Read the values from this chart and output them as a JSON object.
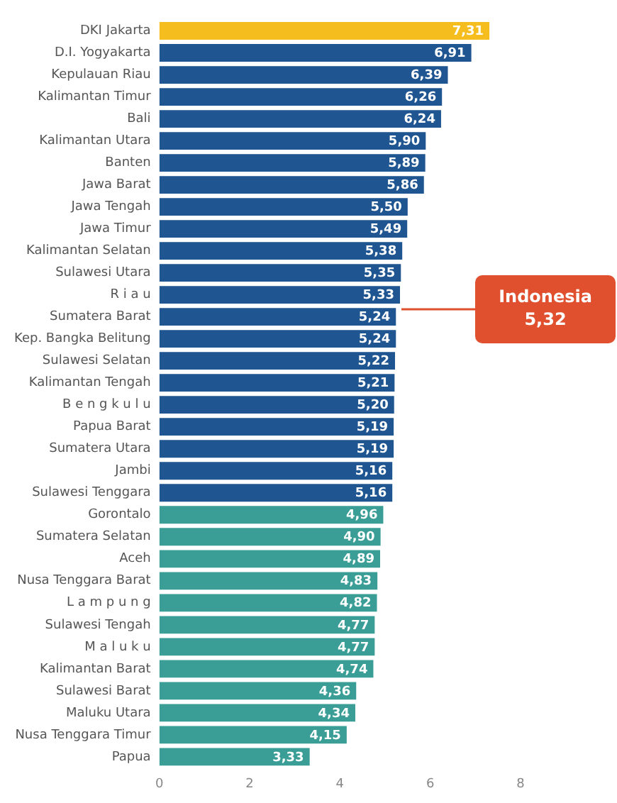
{
  "chart_data": {
    "type": "bar",
    "orientation": "horizontal",
    "categories": [
      "DKI Jakarta",
      "D.I. Yogyakarta",
      "Kepulauan Riau",
      "Kalimantan Timur",
      "Bali",
      "Kalimantan Utara",
      "Banten",
      "Jawa Barat",
      "Jawa Tengah",
      "Jawa Timur",
      "Kalimantan Selatan",
      "Sulawesi Utara",
      "R i a u",
      "Sumatera Barat",
      "Kep. Bangka Belitung",
      "Sulawesi Selatan",
      "Kalimantan Tengah",
      "B e n g k u l u",
      "Papua Barat",
      "Sumatera Utara",
      "Jambi",
      "Sulawesi Tenggara",
      "Gorontalo",
      "Sumatera Selatan",
      "Aceh",
      "Nusa Tenggara Barat",
      "L a m p u n g",
      "Sulawesi Tengah",
      "M a l u k u",
      "Kalimantan Barat",
      "Sulawesi Barat",
      "Maluku Utara",
      "Nusa Tenggara Timur",
      "Papua"
    ],
    "values": [
      7.31,
      6.91,
      6.39,
      6.26,
      6.24,
      5.9,
      5.89,
      5.86,
      5.5,
      5.49,
      5.38,
      5.35,
      5.33,
      5.24,
      5.24,
      5.22,
      5.21,
      5.2,
      5.19,
      5.19,
      5.16,
      5.16,
      4.96,
      4.9,
      4.89,
      4.83,
      4.82,
      4.77,
      4.77,
      4.74,
      4.36,
      4.34,
      4.15,
      3.33
    ],
    "value_labels": [
      "7,31",
      "6,91",
      "6,39",
      "6,26",
      "6,24",
      "5,90",
      "5,89",
      "5,86",
      "5,50",
      "5,49",
      "5,38",
      "5,35",
      "5,33",
      "5,24",
      "5,24",
      "5,22",
      "5,21",
      "5,20",
      "5,19",
      "5,19",
      "5,16",
      "5,16",
      "4,96",
      "4,90",
      "4,89",
      "4,83",
      "4,82",
      "4,77",
      "4,77",
      "4,74",
      "4,36",
      "4,34",
      "4,15",
      "3,33"
    ],
    "colors": [
      "#f5be1e",
      "#1f5591",
      "#1f5591",
      "#1f5591",
      "#1f5591",
      "#1f5591",
      "#1f5591",
      "#1f5591",
      "#1f5591",
      "#1f5591",
      "#1f5591",
      "#1f5591",
      "#1f5591",
      "#1f5591",
      "#1f5591",
      "#1f5591",
      "#1f5591",
      "#1f5591",
      "#1f5591",
      "#1f5591",
      "#1f5591",
      "#1f5591",
      "#3a9e96",
      "#3a9e96",
      "#3a9e96",
      "#3a9e96",
      "#3a9e96",
      "#3a9e96",
      "#3a9e96",
      "#3a9e96",
      "#3a9e96",
      "#3a9e96",
      "#3a9e96",
      "#3a9e96"
    ],
    "xlim": [
      0,
      8
    ],
    "xticks": [
      0,
      2,
      4,
      6,
      8
    ],
    "grid": false,
    "legend": false,
    "annotations": [
      "Indonesia 5,32"
    ]
  }
}
